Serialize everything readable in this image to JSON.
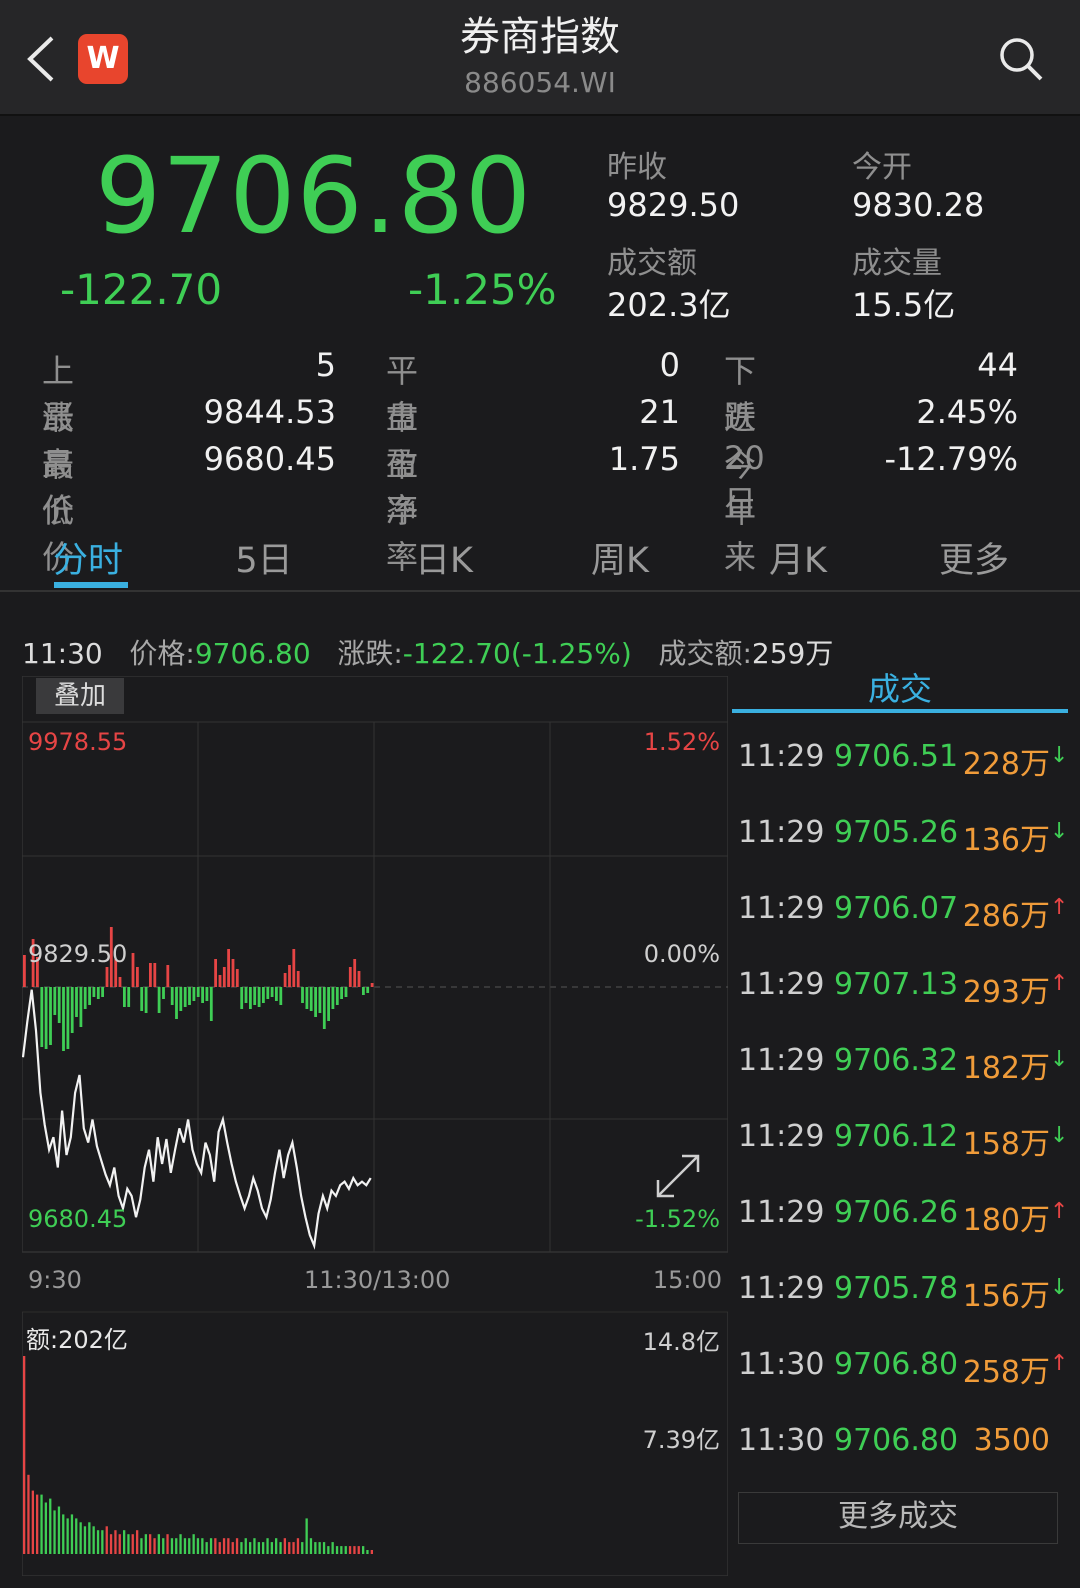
{
  "header": {
    "title": "券商指数",
    "code": "886054.WI",
    "logo_text": "W",
    "logo_color": "#e8452d"
  },
  "quote": {
    "price": "9706.80",
    "change": "-122.70",
    "change_pct": "-1.25%",
    "prev_close_label": "昨收",
    "prev_close": "9829.50",
    "open_label": "今开",
    "open": "9830.28",
    "turnover_label": "成交额",
    "turnover": "202.3亿",
    "volume_label": "成交量",
    "volume": "15.5亿"
  },
  "stats": [
    [
      {
        "label": "上　涨",
        "value": "5"
      },
      {
        "label": "平　盘",
        "value": "0"
      },
      {
        "label": "下　跌",
        "value": "44"
      }
    ],
    [
      {
        "label": "最高价",
        "value": "9844.53"
      },
      {
        "label": "市盈率",
        "value": "21"
      },
      {
        "label": "近20日",
        "value": "2.45%"
      }
    ],
    [
      {
        "label": "最低价",
        "value": "9680.45"
      },
      {
        "label": "市净率",
        "value": "1.75"
      },
      {
        "label": "今年来",
        "value": "-12.79%"
      }
    ]
  ],
  "tabs": [
    {
      "label": "分时",
      "active": true
    },
    {
      "label": "5日"
    },
    {
      "label": "日K"
    },
    {
      "label": "周K"
    },
    {
      "label": "月K"
    },
    {
      "label": "更多"
    }
  ],
  "info": {
    "time": "11:30",
    "price_label": "价格:",
    "price": "9706.80",
    "change_label": "涨跌:",
    "change": "-122.70(-1.25%)",
    "turnover_label": "成交额:",
    "turnover": "259万"
  },
  "chart": {
    "overlay_label": "叠加",
    "y_high": "9978.55",
    "y_mid": "9829.50",
    "y_low": "9680.45",
    "pct_high": "1.52%",
    "pct_mid": "0.00%",
    "pct_low": "-1.52%",
    "t_start": "9:30",
    "t_mid": "11:30/13:00",
    "t_end": "15:00",
    "vol_label": "额:202亿",
    "vol_high": "14.8亿",
    "vol_mid": "7.39亿",
    "colors": {
      "up": "#e64545",
      "down": "#3fce55",
      "line": "#f2f2f2"
    }
  },
  "chart_data": {
    "type": "line",
    "ylim": [
      9680.45,
      9978.55
    ],
    "reference": 9829.5,
    "line": [
      9790,
      9810,
      9828,
      9805,
      9770,
      9752,
      9738,
      9745,
      9728,
      9760,
      9735,
      9745,
      9770,
      9780,
      9750,
      9742,
      9755,
      9740,
      9732,
      9724,
      9718,
      9728,
      9712,
      9705,
      9716,
      9712,
      9700,
      9710,
      9728,
      9738,
      9720,
      9745,
      9730,
      9744,
      9725,
      9738,
      9750,
      9742,
      9755,
      9738,
      9730,
      9725,
      9742,
      9735,
      9720,
      9748,
      9755,
      9742,
      9730,
      9720,
      9712,
      9705,
      9712,
      9722,
      9715,
      9705,
      9700,
      9710,
      9725,
      9738,
      9722,
      9735,
      9742,
      9728,
      9712,
      9700,
      9690,
      9684,
      9702,
      9712,
      9705,
      9715,
      9712,
      9718,
      9720,
      9716,
      9722,
      9718,
      9720,
      9718,
      9722
    ],
    "bars": [
      32,
      0,
      48,
      30,
      -60,
      -62,
      -58,
      -28,
      -36,
      -64,
      -62,
      -46,
      -30,
      -40,
      -22,
      -18,
      -10,
      -12,
      -10,
      20,
      60,
      28,
      10,
      -20,
      -20,
      34,
      20,
      -24,
      -26,
      24,
      24,
      -26,
      -12,
      22,
      -18,
      -32,
      -24,
      -20,
      -18,
      -14,
      -10,
      -16,
      -14,
      -34,
      28,
      12,
      20,
      38,
      28,
      18,
      -22,
      -16,
      -22,
      -18,
      -20,
      -16,
      -12,
      -10,
      -14,
      -18,
      14,
      22,
      38,
      16,
      -16,
      -22,
      -24,
      -30,
      -26,
      -42,
      -34,
      -22,
      -18,
      -12,
      -10,
      20,
      28,
      16,
      -8,
      -6,
      4
    ],
    "volume": [
      100,
      40,
      32,
      30,
      30,
      26,
      28,
      22,
      24,
      20,
      18,
      20,
      18,
      16,
      14,
      16,
      14,
      12,
      12,
      14,
      10,
      12,
      10,
      12,
      10,
      10,
      12,
      8,
      10,
      10,
      8,
      10,
      8,
      10,
      8,
      8,
      10,
      8,
      8,
      10,
      8,
      8,
      6,
      8,
      8,
      6,
      8,
      8,
      6,
      8,
      6,
      8,
      6,
      8,
      6,
      6,
      8,
      6,
      8,
      6,
      8,
      6,
      6,
      8,
      6,
      18,
      8,
      6,
      6,
      6,
      4,
      6,
      4,
      4,
      4,
      4,
      4,
      4,
      4,
      2,
      2
    ],
    "vol_ylim": [
      0,
      14.8
    ]
  },
  "trades": {
    "heading": "成交",
    "more_label": "更多成交",
    "rows": [
      {
        "time": "11:29",
        "price": "9706.51",
        "volume": "228万",
        "dir": "down"
      },
      {
        "time": "11:29",
        "price": "9705.26",
        "volume": "136万",
        "dir": "down"
      },
      {
        "time": "11:29",
        "price": "9706.07",
        "volume": "286万",
        "dir": "up"
      },
      {
        "time": "11:29",
        "price": "9707.13",
        "volume": "293万",
        "dir": "up"
      },
      {
        "time": "11:29",
        "price": "9706.32",
        "volume": "182万",
        "dir": "down"
      },
      {
        "time": "11:29",
        "price": "9706.12",
        "volume": "158万",
        "dir": "down"
      },
      {
        "time": "11:29",
        "price": "9706.26",
        "volume": "180万",
        "dir": "up"
      },
      {
        "time": "11:29",
        "price": "9705.78",
        "volume": "156万",
        "dir": "down"
      },
      {
        "time": "11:30",
        "price": "9706.80",
        "volume": "258万",
        "dir": "up"
      },
      {
        "time": "11:30",
        "price": "9706.80",
        "volume": "3500",
        "dir": ""
      }
    ]
  }
}
